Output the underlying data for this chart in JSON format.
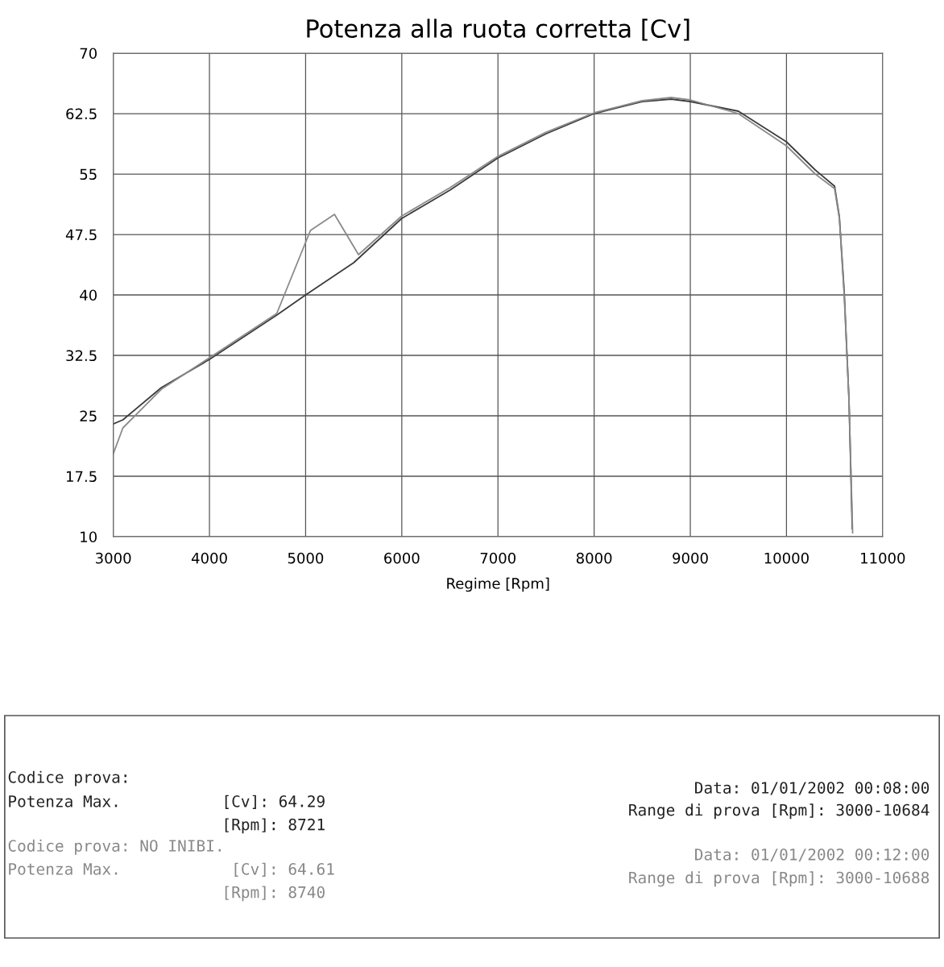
{
  "chart_data": {
    "type": "line",
    "title": "Potenza alla ruota corretta [Cv]",
    "xlabel": "Regime [Rpm]",
    "xlim": [
      3000,
      11000
    ],
    "xticks": [
      3000,
      4000,
      5000,
      6000,
      7000,
      8000,
      9000,
      10000,
      11000
    ],
    "ylim": [
      10,
      70
    ],
    "yticks": [
      10,
      17.5,
      25,
      32.5,
      40,
      47.5,
      55,
      62.5,
      70
    ],
    "grid": true,
    "marker": "none",
    "line_style": "solid",
    "series": [
      {
        "color": "#3c3c3c",
        "x": [
          3000,
          3100,
          3500,
          4000,
          4700,
          5000,
          5500,
          6000,
          6500,
          7000,
          7500,
          8000,
          8500,
          8800,
          9000,
          9500,
          10000,
          10300,
          10500,
          10550,
          10600,
          10650,
          10684
        ],
        "values": [
          24,
          24.5,
          28.5,
          32,
          37.5,
          40,
          44,
          49.5,
          53,
          57,
          60,
          62.5,
          64,
          64.3,
          64,
          62.8,
          59,
          55.5,
          53.5,
          49.7,
          40.5,
          27,
          11
        ]
      },
      {
        "color": "#8a8a8a",
        "x": [
          3000,
          3100,
          3500,
          4000,
          4700,
          5050,
          5300,
          5550,
          6000,
          6500,
          7000,
          7500,
          8000,
          8500,
          8800,
          9000,
          9500,
          10000,
          10300,
          10500,
          10550,
          10600,
          10650,
          10688
        ],
        "values": [
          20.3,
          23.5,
          28.3,
          32.2,
          37.7,
          48,
          50,
          45,
          49.8,
          53.3,
          57.2,
          60.2,
          62.6,
          64.1,
          64.5,
          64.2,
          62.5,
          58.5,
          55,
          53.2,
          49.5,
          40,
          27,
          10.5
        ]
      }
    ],
    "annotations": [
      "Codice prova:",
      "Potenza Max.",
      "[Cv]: 64.29",
      "[Rpm]: 8721",
      "Data: 01/01/2002 00:08:00",
      "Range di prova [Rpm]: 3000-10684",
      "Codice prova: NO INIBI.",
      "Potenza Max.",
      "[Cv]: 64.61",
      "[Rpm]: 8740",
      "Data: 01/01/2002 00:12:00",
      "Range di prova [Rpm]: 3000-10688"
    ]
  }
}
